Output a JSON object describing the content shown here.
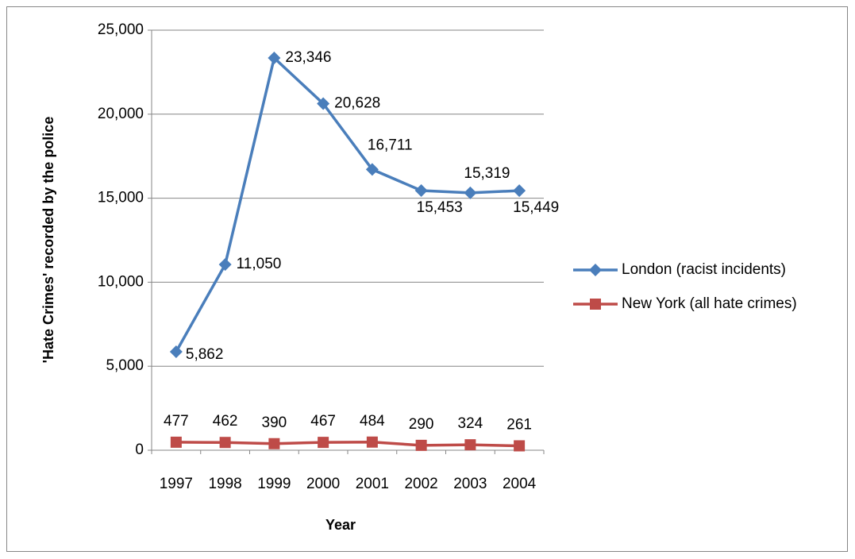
{
  "chart_data": {
    "type": "line",
    "x_label": "Year",
    "y_label": "'Hate Crimes' recorded by the police",
    "categories": [
      "1997",
      "1998",
      "1999",
      "2000",
      "2001",
      "2002",
      "2003",
      "2004"
    ],
    "series": [
      {
        "name": "London (racist incidents)",
        "color": "#4a7ebb",
        "marker": "diamond",
        "values": [
          5862,
          11050,
          23346,
          20628,
          16711,
          15453,
          15319,
          15449
        ],
        "value_labels": [
          "5,862",
          "11,050",
          "23,346",
          "20,628",
          "16,711",
          "15,453",
          "15,319",
          "15,449"
        ]
      },
      {
        "name": "New York (all hate crimes)",
        "color": "#be4b48",
        "marker": "square",
        "values": [
          477,
          462,
          390,
          467,
          484,
          290,
          324,
          261
        ]
      }
    ],
    "ylim": [
      0,
      25000
    ],
    "yticks": [
      0,
      {
        "value": 5000,
        "label": "5,000"
      },
      {
        "value": 10000,
        "label": "10,000"
      },
      {
        "value": 15000,
        "label": "15,000"
      },
      {
        "value": 20000,
        "label": "20,000"
      },
      {
        "value": 25000,
        "label": "25,000"
      }
    ],
    "grid": true,
    "legend": "right"
  }
}
